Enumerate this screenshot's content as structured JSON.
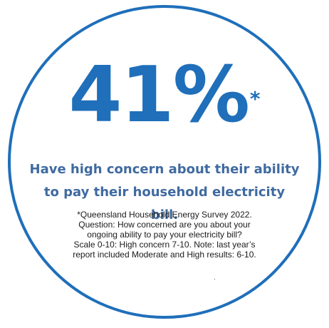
{
  "stat": {
    "value": "41%",
    "footnote_marker": "*"
  },
  "headline": {
    "line1": "Have high concern about their ability",
    "line2": "to pay their household electricity bill."
  },
  "note": {
    "lines": [
      "*Queensland Household Energy Survey 2022.",
      "Question: How concerned are you about your",
      "ongoing ability to pay your electricity bill?",
      "Scale 0-10: High concern 7-10. Note: last year’s",
      "report included Moderate and High results: 6-10."
    ],
    "trailing_mark": "."
  },
  "colors": {
    "accent": "#1f6fba",
    "headline": "#3f6aa0"
  }
}
